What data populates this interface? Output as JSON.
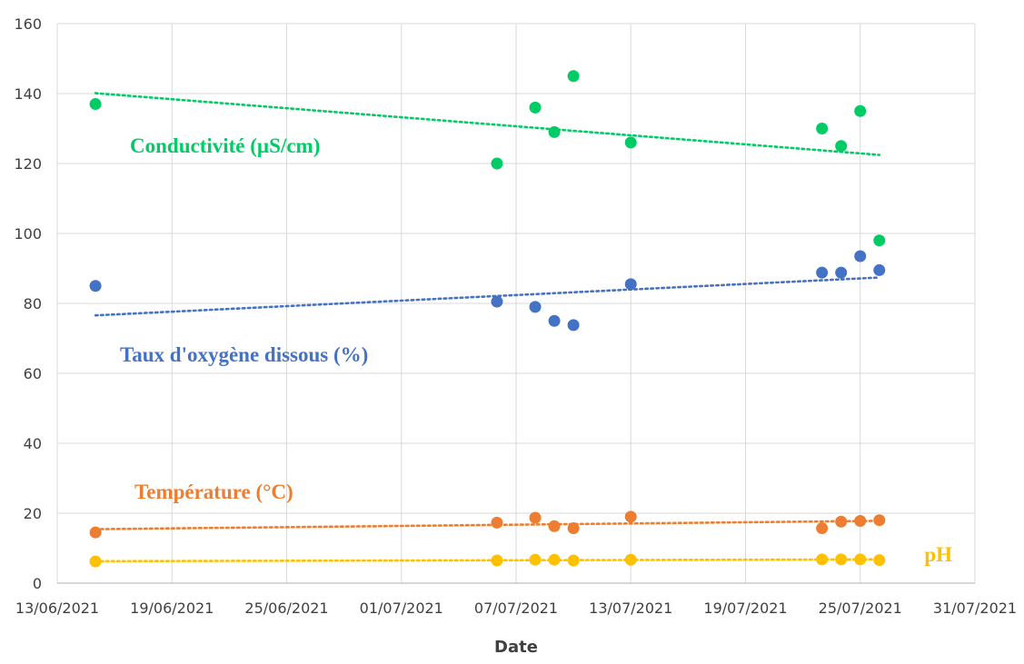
{
  "chart_data": {
    "type": "scatter",
    "xlabel": "Date",
    "ylabel": "",
    "xlim": [
      "2021-06-13",
      "2021-07-31"
    ],
    "ylim": [
      0,
      160
    ],
    "x_ticks": [
      "13/06/2021",
      "19/06/2021",
      "25/06/2021",
      "01/07/2021",
      "07/07/2021",
      "13/07/2021",
      "19/07/2021",
      "25/07/2021",
      "31/07/2021"
    ],
    "y_ticks": [
      "0",
      "20",
      "40",
      "60",
      "80",
      "100",
      "120",
      "140",
      "160"
    ],
    "grid": true,
    "legend": "none",
    "trendline": "linear, dotted",
    "series": [
      {
        "name": "Conductivité (µS/cm)",
        "color": "#00CC66",
        "x": [
          "2021-06-15",
          "2021-07-06",
          "2021-07-08",
          "2021-07-09",
          "2021-07-10",
          "2021-07-13",
          "2021-07-23",
          "2021-07-24",
          "2021-07-25",
          "2021-07-26"
        ],
        "y": [
          137,
          120,
          136,
          129,
          145,
          126,
          130,
          125,
          135,
          98
        ]
      },
      {
        "name": "Taux d'oxygène dissous (%)",
        "color": "#4472C4",
        "x": [
          "2021-06-15",
          "2021-07-06",
          "2021-07-08",
          "2021-07-09",
          "2021-07-10",
          "2021-07-13",
          "2021-07-23",
          "2021-07-24",
          "2021-07-25",
          "2021-07-26"
        ],
        "y": [
          85,
          80.5,
          79,
          75,
          73.8,
          85.5,
          88.8,
          88.8,
          93.5,
          89.5
        ]
      },
      {
        "name": "Température (°C)",
        "color": "#ED7D31",
        "x": [
          "2021-06-15",
          "2021-07-06",
          "2021-07-08",
          "2021-07-09",
          "2021-07-10",
          "2021-07-13",
          "2021-07-23",
          "2021-07-24",
          "2021-07-25",
          "2021-07-26"
        ],
        "y": [
          14.5,
          17.3,
          18.7,
          16.3,
          15.7,
          19,
          15.7,
          17.6,
          17.8,
          18
        ]
      },
      {
        "name": "pH",
        "color": "#FFC000",
        "x": [
          "2021-06-15",
          "2021-07-06",
          "2021-07-08",
          "2021-07-09",
          "2021-07-10",
          "2021-07-13",
          "2021-07-23",
          "2021-07-24",
          "2021-07-25",
          "2021-07-26"
        ],
        "y": [
          6.2,
          6.5,
          6.7,
          6.7,
          6.5,
          6.7,
          6.8,
          6.8,
          6.8,
          6.6
        ]
      }
    ]
  }
}
